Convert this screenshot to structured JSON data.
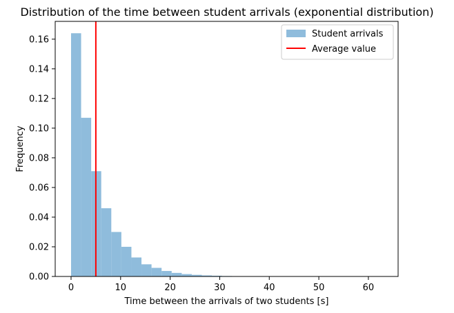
{
  "chart_data": {
    "type": "bar",
    "title": "Distribution of the time between student arrivals (exponential distribution)",
    "xlabel": "Time between the arrivals of two students [s]",
    "ylabel": "Frequency",
    "xlim": [
      -3.2,
      66.0
    ],
    "ylim": [
      0,
      0.172
    ],
    "xticks": [
      0,
      10,
      20,
      30,
      40,
      50,
      60
    ],
    "yticks": [
      0.0,
      0.02,
      0.04,
      0.06,
      0.08,
      0.1,
      0.12,
      0.14,
      0.16
    ],
    "ytick_labels": [
      "0.00",
      "0.02",
      "0.04",
      "0.06",
      "0.08",
      "0.10",
      "0.12",
      "0.14",
      "0.16"
    ],
    "bin_start": 0,
    "bin_width": 2.03,
    "values": [
      0.164,
      0.107,
      0.071,
      0.046,
      0.03,
      0.02,
      0.0128,
      0.0082,
      0.0058,
      0.0037,
      0.0024,
      0.0016,
      0.0011,
      0.0007,
      0.0005,
      0.0003,
      0.0002,
      0.00015,
      0.0001,
      8e-05,
      6e-05,
      4e-05,
      3e-05,
      2e-05,
      2e-05,
      1e-05,
      1e-05,
      1e-05,
      1e-05,
      1e-05,
      1e-05
    ],
    "average_value": 5.0,
    "series": [
      {
        "name": "Student arrivals",
        "color": "#8fbcdc",
        "kind": "histogram"
      },
      {
        "name": "Average value",
        "color": "#ff0000",
        "kind": "vline"
      }
    ],
    "legend_position": "top-right",
    "grid": false
  }
}
